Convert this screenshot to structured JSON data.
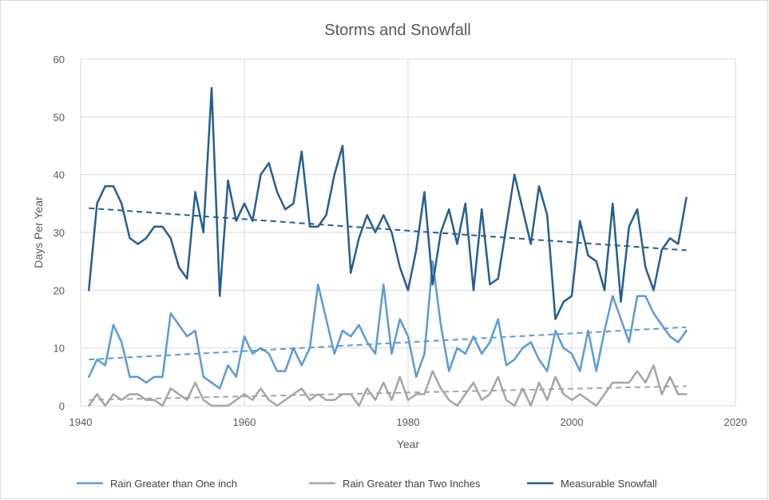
{
  "chart_data": {
    "type": "line",
    "title": "Storms and Snowfall",
    "xlabel": "Year",
    "ylabel": "Days Per Year",
    "xlim": [
      1940,
      2020
    ],
    "ylim": [
      0,
      60
    ],
    "x_ticks": [
      1940,
      1960,
      1980,
      2000,
      2020
    ],
    "y_ticks": [
      0,
      10,
      20,
      30,
      40,
      50,
      60
    ],
    "grid": true,
    "legend_position": "bottom",
    "years": [
      1941,
      1942,
      1943,
      1944,
      1945,
      1946,
      1947,
      1948,
      1949,
      1950,
      1951,
      1952,
      1953,
      1954,
      1955,
      1956,
      1957,
      1958,
      1959,
      1960,
      1961,
      1962,
      1963,
      1964,
      1965,
      1966,
      1967,
      1968,
      1969,
      1970,
      1971,
      1972,
      1973,
      1974,
      1975,
      1976,
      1977,
      1978,
      1979,
      1980,
      1981,
      1982,
      1983,
      1984,
      1985,
      1986,
      1987,
      1988,
      1989,
      1990,
      1991,
      1992,
      1993,
      1994,
      1995,
      1996,
      1997,
      1998,
      1999,
      2000,
      2001,
      2002,
      2003,
      2004,
      2005,
      2006,
      2007,
      2008,
      2009,
      2010,
      2011,
      2012,
      2013,
      2014
    ],
    "series": [
      {
        "name": "Rain Greater than One inch",
        "color": "#5b9bd5",
        "values": [
          5,
          8,
          7,
          14,
          11,
          5,
          5,
          4,
          5,
          5,
          16,
          14,
          12,
          13,
          5,
          4,
          3,
          7,
          5,
          12,
          9,
          10,
          9,
          6,
          6,
          10,
          7,
          10,
          21,
          15,
          9,
          13,
          12,
          14,
          11,
          9,
          21,
          9,
          15,
          12,
          5,
          9,
          25,
          14,
          6,
          10,
          9,
          12,
          9,
          11,
          15,
          7,
          8,
          10,
          11,
          8,
          6,
          13,
          10,
          9,
          6,
          13,
          6,
          13,
          19,
          15,
          11,
          19,
          19,
          16,
          14,
          12,
          11,
          13
        ],
        "trend": [
          8.0,
          13.6
        ]
      },
      {
        "name": "Rain Greater than Two Inches",
        "color": "#a5a5a5",
        "values": [
          0,
          2,
          0,
          2,
          1,
          2,
          2,
          1,
          1,
          0,
          3,
          2,
          1,
          4,
          1,
          0,
          0,
          0,
          1,
          2,
          1,
          3,
          1,
          0,
          1,
          2,
          3,
          1,
          2,
          1,
          1,
          2,
          2,
          0,
          3,
          1,
          4,
          1,
          5,
          1,
          2,
          2,
          6,
          3,
          1,
          0,
          2,
          4,
          1,
          2,
          5,
          1,
          0,
          3,
          0,
          4,
          1,
          5,
          2,
          1,
          2,
          1,
          0,
          2,
          4,
          4,
          4,
          6,
          4,
          7,
          2,
          5,
          2,
          2
        ],
        "trend": [
          1.0,
          3.4
        ]
      },
      {
        "name": "Measurable Snowfall",
        "color": "#255e91",
        "values": [
          20,
          35,
          38,
          38,
          35,
          29,
          28,
          29,
          31,
          31,
          29,
          24,
          22,
          37,
          30,
          55,
          19,
          39,
          32,
          35,
          32,
          40,
          42,
          37,
          34,
          35,
          44,
          31,
          31,
          33,
          40,
          45,
          23,
          29,
          33,
          30,
          33,
          30,
          24,
          20,
          27,
          37,
          21,
          30,
          34,
          28,
          35,
          20,
          34,
          21,
          22,
          31,
          40,
          34,
          28,
          38,
          33,
          15,
          18,
          19,
          32,
          26,
          25,
          20,
          35,
          18,
          31,
          34,
          24,
          20,
          27,
          29,
          28,
          36
        ],
        "trend": [
          34.2,
          26.9
        ]
      }
    ]
  }
}
